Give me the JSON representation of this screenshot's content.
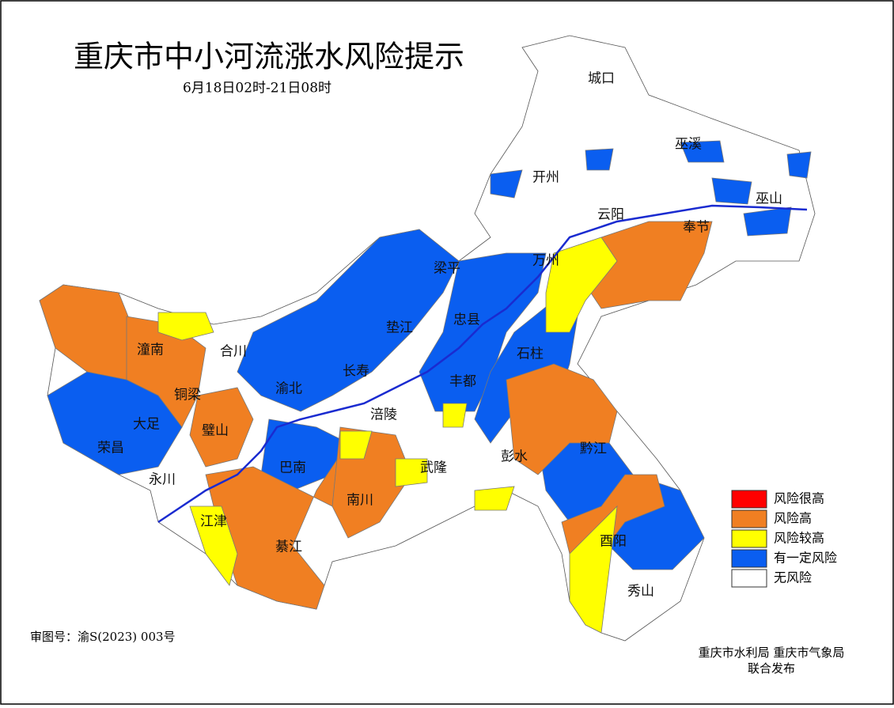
{
  "header": {
    "title": "重庆市中小河流涨水风险提示",
    "subtitle": "6月18日02时-21日08时"
  },
  "legend": [
    {
      "label": "风险很高",
      "color": "#ff0000"
    },
    {
      "label": "风险高",
      "color": "#f07f22"
    },
    {
      "label": "风险较高",
      "color": "#ffff00"
    },
    {
      "label": "有一定风险",
      "color": "#0a5ef0"
    },
    {
      "label": "无风险",
      "color": "#ffffff"
    }
  ],
  "districts": [
    "城口",
    "巫溪",
    "开州",
    "巫山",
    "云阳",
    "奉节",
    "万州",
    "梁平",
    "忠县",
    "垫江",
    "石柱",
    "潼南",
    "合川",
    "长寿",
    "渝北",
    "丰都",
    "铜梁",
    "大足",
    "璧山",
    "涪陵",
    "荣昌",
    "永川",
    "巴南",
    "武隆",
    "彭水",
    "黔江",
    "南川",
    "江津",
    "綦江",
    "酉阳",
    "秀山"
  ],
  "footer": {
    "map_number": "审图号：渝S(2023) 003号",
    "publishers": "重庆市水利局 重庆市气象局",
    "release": "联合发布"
  }
}
